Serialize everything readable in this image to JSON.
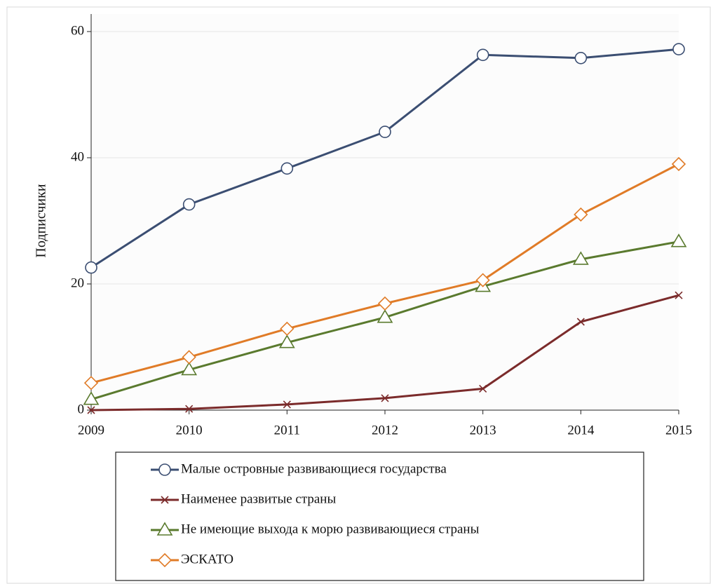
{
  "chart_data": {
    "type": "line",
    "y_label": "Подписчики",
    "categories": [
      "2009",
      "2010",
      "2011",
      "2012",
      "2013",
      "2014",
      "2015"
    ],
    "series": [
      {
        "name": "Малые островные развивающиеся государства",
        "color": "#3b4e72",
        "marker": "circle",
        "values": [
          22.6,
          32.6,
          38.3,
          44.1,
          56.3,
          55.8,
          57.2
        ]
      },
      {
        "name": "Наименее развитые страны",
        "color": "#7b2b2b",
        "marker": "x",
        "values": [
          0,
          0.2,
          0.9,
          1.9,
          3.4,
          14,
          18.2
        ]
      },
      {
        "name": "Не имеющие выхода к морю развивающиеся страны",
        "color": "#5a7a2e",
        "marker": "triangle",
        "values": [
          1.7,
          6.4,
          10.7,
          14.7,
          19.6,
          23.9,
          26.7
        ]
      },
      {
        "name": "ЭСКАТО",
        "color": "#e07b27",
        "marker": "diamond",
        "values": [
          4.3,
          8.4,
          12.9,
          16.9,
          20.6,
          31,
          39
        ]
      }
    ],
    "ylim": [
      0,
      60
    ],
    "yticks": [
      0,
      20,
      40,
      60
    ],
    "grid": true,
    "legend": "bottom"
  }
}
